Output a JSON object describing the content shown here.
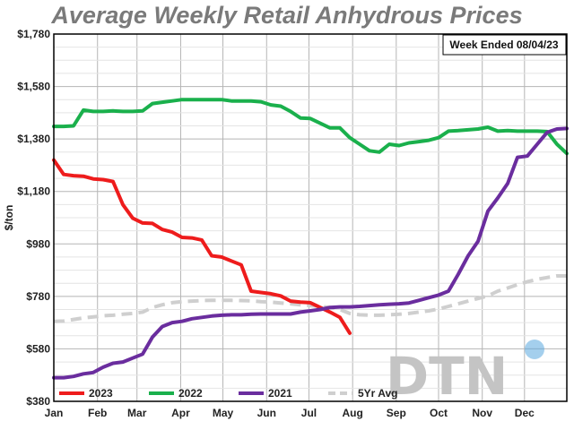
{
  "chart_data": {
    "type": "line",
    "title": "Average Weekly Retail Anhydrous Prices",
    "annotation": "Week Ended 08/04/23",
    "ylabel": "$/ton",
    "xlabel": "",
    "ylim": [
      380,
      1780
    ],
    "yticks": [
      "$380",
      "$580",
      "$780",
      "$980",
      "$1,180",
      "$1,380",
      "$1,580",
      "$1,780"
    ],
    "ytick_values": [
      380,
      580,
      780,
      980,
      1180,
      1380,
      1580,
      1780
    ],
    "xlim": [
      0,
      52
    ],
    "xticks": [
      "Jan",
      "Feb",
      "Mar",
      "Apr",
      "May",
      "Jun",
      "Jul",
      "Aug",
      "Sep",
      "Oct",
      "Nov",
      "Dec"
    ],
    "xtick_positions": [
      0,
      4.43,
      8.43,
      12.86,
      17.14,
      21.57,
      25.86,
      30.29,
      34.71,
      39,
      43.43,
      47.71
    ],
    "grid": true,
    "legend_position": "bottom-left",
    "watermark": "DTN",
    "series": [
      {
        "name": "2023",
        "color": "#ee1c1c",
        "x": [
          0,
          1,
          2,
          3,
          4,
          5,
          6,
          7,
          8,
          9,
          10,
          11,
          12,
          13,
          14,
          15,
          16,
          17,
          18,
          19,
          20,
          21,
          22,
          23,
          24,
          25,
          26,
          27,
          28,
          29,
          30
        ],
        "values": [
          1300,
          1245,
          1240,
          1238,
          1228,
          1225,
          1218,
          1130,
          1078,
          1060,
          1058,
          1035,
          1025,
          1005,
          1003,
          995,
          935,
          930,
          915,
          900,
          800,
          795,
          790,
          782,
          762,
          758,
          756,
          738,
          720,
          700,
          640
        ]
      },
      {
        "name": "2022",
        "color": "#1ab04c",
        "x": [
          0,
          1,
          2,
          3,
          4,
          5,
          6,
          7,
          8,
          9,
          10,
          11,
          12,
          13,
          14,
          15,
          16,
          17,
          18,
          19,
          20,
          21,
          22,
          23,
          24,
          25,
          26,
          27,
          28,
          29,
          30,
          31,
          32,
          33,
          34,
          35,
          36,
          37,
          38,
          39,
          40,
          41,
          42,
          43,
          44,
          45,
          46,
          47,
          48,
          49,
          50,
          51,
          52
        ],
        "values": [
          1428,
          1428,
          1430,
          1490,
          1485,
          1485,
          1487,
          1485,
          1485,
          1487,
          1515,
          1520,
          1525,
          1530,
          1530,
          1530,
          1530,
          1530,
          1525,
          1525,
          1525,
          1522,
          1510,
          1505,
          1485,
          1460,
          1458,
          1440,
          1422,
          1422,
          1385,
          1360,
          1335,
          1330,
          1360,
          1355,
          1365,
          1370,
          1375,
          1385,
          1410,
          1412,
          1415,
          1418,
          1425,
          1410,
          1412,
          1410,
          1410,
          1410,
          1408,
          1360,
          1325
        ]
      },
      {
        "name": "2021",
        "color": "#6a2d9e",
        "x": [
          0,
          1,
          2,
          3,
          4,
          5,
          6,
          7,
          8,
          9,
          10,
          11,
          12,
          13,
          14,
          15,
          16,
          17,
          18,
          19,
          20,
          21,
          22,
          23,
          24,
          25,
          26,
          27,
          28,
          29,
          30,
          31,
          32,
          33,
          34,
          35,
          36,
          37,
          38,
          39,
          40,
          41,
          42,
          43,
          44,
          45,
          46,
          47,
          48,
          49,
          50,
          51,
          52
        ],
        "values": [
          470,
          470,
          475,
          485,
          490,
          510,
          525,
          530,
          545,
          560,
          625,
          665,
          680,
          685,
          695,
          700,
          705,
          708,
          710,
          710,
          712,
          713,
          713,
          713,
          713,
          720,
          725,
          730,
          738,
          740,
          740,
          742,
          745,
          748,
          750,
          752,
          755,
          765,
          775,
          785,
          800,
          865,
          935,
          990,
          1105,
          1155,
          1210,
          1310,
          1315,
          1360,
          1405,
          1418,
          1420
        ]
      },
      {
        "name": "5Yr Avg",
        "color": "#cfcfcf",
        "dashed": true,
        "x": [
          0,
          1,
          2,
          3,
          4,
          5,
          6,
          7,
          8,
          9,
          10,
          11,
          12,
          13,
          14,
          15,
          16,
          17,
          18,
          19,
          20,
          21,
          22,
          23,
          24,
          25,
          26,
          27,
          28,
          29,
          30,
          31,
          32,
          33,
          34,
          35,
          36,
          37,
          38,
          39,
          40,
          41,
          42,
          43,
          44,
          45,
          46,
          47,
          48,
          49,
          50,
          51,
          52
        ],
        "values": [
          685,
          686,
          692,
          698,
          702,
          706,
          708,
          712,
          715,
          720,
          738,
          748,
          756,
          760,
          762,
          764,
          765,
          765,
          765,
          764,
          763,
          760,
          758,
          755,
          752,
          748,
          745,
          742,
          738,
          730,
          715,
          710,
          708,
          708,
          710,
          712,
          715,
          720,
          725,
          732,
          742,
          752,
          762,
          772,
          782,
          800,
          812,
          825,
          836,
          845,
          852,
          858,
          858
        ]
      }
    ]
  }
}
